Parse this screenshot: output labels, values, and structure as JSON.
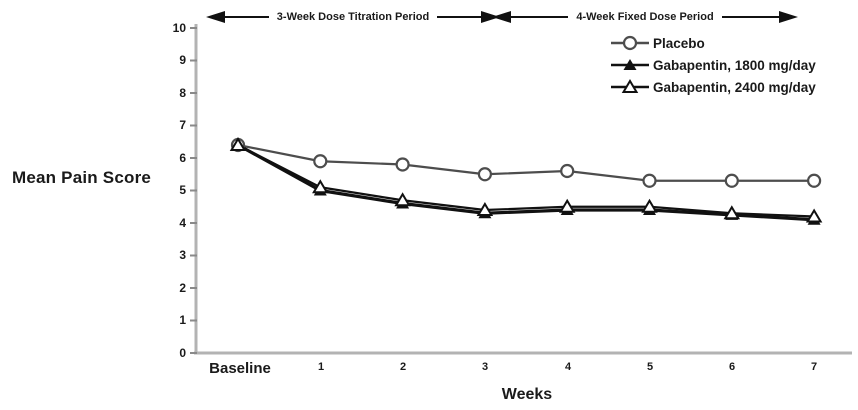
{
  "chart_data": {
    "type": "line",
    "title": "",
    "ylabel": "Mean Pain Score",
    "xlabel": "Weeks",
    "categories": [
      "Baseline",
      "1",
      "2",
      "3",
      "4",
      "5",
      "6",
      "7"
    ],
    "ytick_labels": [
      "10",
      "9",
      "8",
      "7",
      "6",
      "5",
      "4",
      "3",
      "2",
      "1",
      "0"
    ],
    "ylim": [
      0,
      10
    ],
    "grid": false,
    "legend_position": "top-right-inside",
    "axis_color": "#b3b3b3",
    "tick_color": "#8a8a8a",
    "annotations": [
      {
        "label": "3-Week Dose Titration Period",
        "arrows": "both"
      },
      {
        "label": "4-Week Fixed Dose Period",
        "arrows": "both"
      }
    ],
    "series": [
      {
        "name": "Placebo",
        "marker": "open-circle",
        "color": "#4d4d4d",
        "line_width": 2.2,
        "values": [
          6.4,
          5.9,
          5.8,
          5.5,
          5.6,
          5.3,
          5.3,
          5.3
        ]
      },
      {
        "name": "Gabapentin, 1800 mg/day",
        "marker": "filled-triangle",
        "color": "#111111",
        "line_width": 3.2,
        "values": [
          6.4,
          5.0,
          4.6,
          4.3,
          4.4,
          4.4,
          4.25,
          4.1
        ]
      },
      {
        "name": "Gabapentin, 2400 mg/day",
        "marker": "open-triangle",
        "color": "#111111",
        "line_width": 2.2,
        "values": [
          6.4,
          5.1,
          4.7,
          4.4,
          4.5,
          4.5,
          4.3,
          4.2
        ]
      }
    ]
  }
}
